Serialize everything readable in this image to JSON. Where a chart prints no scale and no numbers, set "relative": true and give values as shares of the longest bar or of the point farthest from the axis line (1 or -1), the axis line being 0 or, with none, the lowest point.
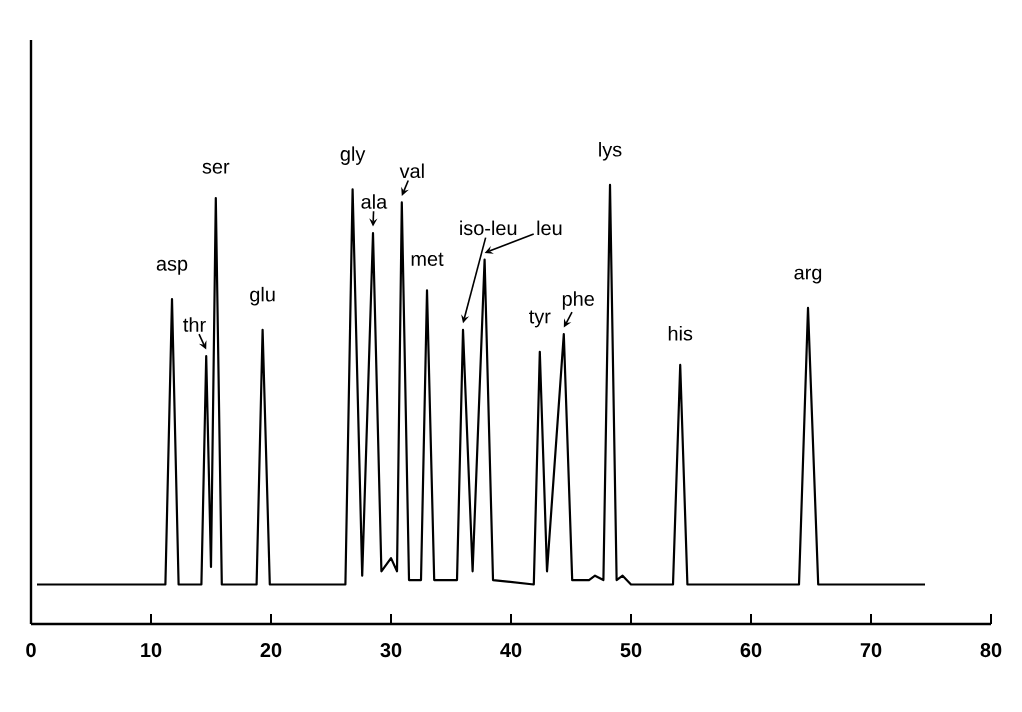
{
  "chart_data": {
    "type": "line",
    "relative": true,
    "series": [
      {
        "color": "#000000",
        "x": [
          0.5,
          11.2,
          11.75,
          12.3,
          14.2,
          14.6,
          15.0,
          15.4,
          15.9,
          18.8,
          19.3,
          19.9,
          26.2,
          26.8,
          27.6,
          28.5,
          29.2,
          30.0,
          30.5,
          30.9,
          31.5,
          32.5,
          33.0,
          33.6,
          35.5,
          36.0,
          36.8,
          37.8,
          38.5,
          41.9,
          42.4,
          43.0,
          44.4,
          45.1,
          46.5,
          47.0,
          47.7,
          48.25,
          48.8,
          49.3,
          50.0,
          53.5,
          54.1,
          54.7,
          64.0,
          64.75,
          65.6,
          74.5
        ],
        "values": [
          0.09,
          0.09,
          0.74,
          0.09,
          0.09,
          0.61,
          0.13,
          0.97,
          0.09,
          0.09,
          0.67,
          0.09,
          0.09,
          0.99,
          0.11,
          0.89,
          0.12,
          0.15,
          0.12,
          0.96,
          0.1,
          0.1,
          0.76,
          0.1,
          0.1,
          0.67,
          0.12,
          0.83,
          0.1,
          0.09,
          0.62,
          0.12,
          0.66,
          0.1,
          0.1,
          0.11,
          0.1,
          1.0,
          0.1,
          0.11,
          0.09,
          0.09,
          0.59,
          0.09,
          0.09,
          0.72,
          0.09,
          0.09
        ]
      }
    ],
    "xlim": [
      0,
      80
    ],
    "xticks": [
      0,
      10,
      20,
      30,
      40,
      50,
      60,
      70,
      80
    ],
    "annotations": [
      {
        "text": "asp",
        "x": 11.75,
        "y": 0.74
      },
      {
        "text": "thr",
        "x": 14.6,
        "y": 0.61
      },
      {
        "text": "ser",
        "x": 15.4,
        "y": 0.97
      },
      {
        "text": "glu",
        "x": 19.3,
        "y": 0.67
      },
      {
        "text": "gly",
        "x": 26.8,
        "y": 0.99
      },
      {
        "text": "ala",
        "x": 28.5,
        "y": 0.89
      },
      {
        "text": "val",
        "x": 30.9,
        "y": 0.96
      },
      {
        "text": "met",
        "x": 33.0,
        "y": 0.76
      },
      {
        "text": "iso-leu",
        "x": 36.0,
        "y": 0.67
      },
      {
        "text": "leu",
        "x": 37.8,
        "y": 0.83
      },
      {
        "text": "tyr",
        "x": 42.4,
        "y": 0.62
      },
      {
        "text": "phe",
        "x": 44.4,
        "y": 0.66
      },
      {
        "text": "lys",
        "x": 48.25,
        "y": 1.0
      },
      {
        "text": "his",
        "x": 54.1,
        "y": 0.59
      },
      {
        "text": "arg",
        "x": 64.75,
        "y": 0.72
      }
    ]
  }
}
